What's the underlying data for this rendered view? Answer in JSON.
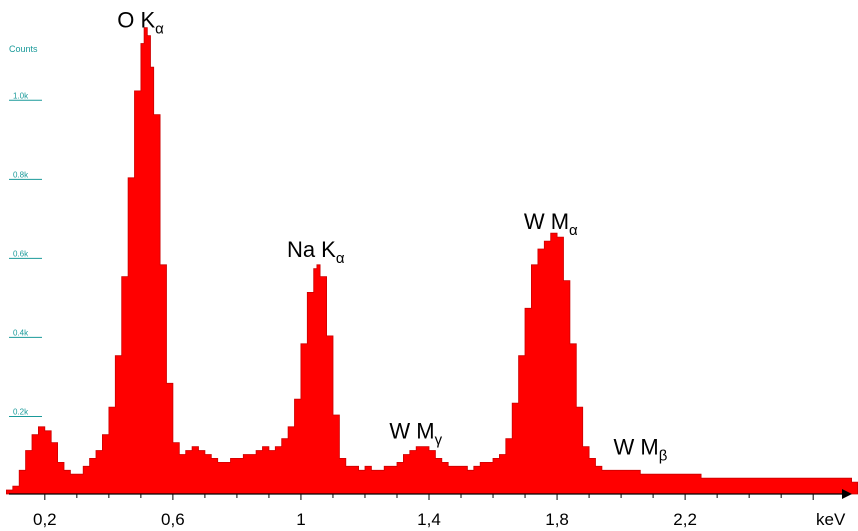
{
  "chart_data": {
    "type": "area",
    "ylabel": "Counts",
    "xlabel": "keV",
    "xlim": [
      0.06,
      2.74
    ],
    "ylim": [
      0,
      1.25
    ],
    "x_ticks": [
      {
        "value": 0.2,
        "label": "0,2"
      },
      {
        "value": 0.6,
        "label": "0,6"
      },
      {
        "value": 1.0,
        "label": "1"
      },
      {
        "value": 1.4,
        "label": "1,4"
      },
      {
        "value": 1.8,
        "label": "1,8"
      },
      {
        "value": 2.2,
        "label": "2,2"
      }
    ],
    "y_ticks": [
      {
        "value": 0.2,
        "label": "0.2k"
      },
      {
        "value": 0.4,
        "label": "0.4k"
      },
      {
        "value": 0.6,
        "label": "0.6k"
      },
      {
        "value": 0.8,
        "label": "0.8k"
      },
      {
        "value": 1.0,
        "label": "1.0k"
      }
    ],
    "peaks": [
      {
        "element": "O",
        "line": "K",
        "sub": "α",
        "x": 0.52,
        "y": 1.16
      },
      {
        "element": "Na",
        "line": "K",
        "sub": "α",
        "x": 1.05,
        "y": 0.58
      },
      {
        "element": "W",
        "line": "M",
        "sub": "γ",
        "x": 1.37,
        "y": 0.12
      },
      {
        "element": "W",
        "line": "M",
        "sub": "α",
        "x": 1.79,
        "y": 0.65
      },
      {
        "element": "W",
        "line": "M",
        "sub": "β",
        "x": 2.07,
        "y": 0.08
      }
    ],
    "series": [
      {
        "color": "#ff0000",
        "x": [
          0.08,
          0.1,
          0.12,
          0.14,
          0.16,
          0.18,
          0.2,
          0.22,
          0.24,
          0.26,
          0.28,
          0.3,
          0.32,
          0.34,
          0.36,
          0.38,
          0.4,
          0.42,
          0.44,
          0.46,
          0.48,
          0.5,
          0.51,
          0.52,
          0.53,
          0.54,
          0.56,
          0.58,
          0.6,
          0.62,
          0.64,
          0.66,
          0.68,
          0.7,
          0.72,
          0.74,
          0.76,
          0.78,
          0.8,
          0.82,
          0.84,
          0.86,
          0.88,
          0.9,
          0.92,
          0.94,
          0.96,
          0.98,
          1.0,
          1.02,
          1.04,
          1.05,
          1.06,
          1.08,
          1.1,
          1.12,
          1.14,
          1.16,
          1.18,
          1.2,
          1.22,
          1.24,
          1.26,
          1.28,
          1.3,
          1.32,
          1.34,
          1.36,
          1.38,
          1.4,
          1.42,
          1.44,
          1.46,
          1.48,
          1.5,
          1.52,
          1.54,
          1.56,
          1.58,
          1.6,
          1.62,
          1.64,
          1.66,
          1.68,
          1.7,
          1.72,
          1.74,
          1.76,
          1.78,
          1.8,
          1.82,
          1.84,
          1.86,
          1.88,
          1.9,
          1.92,
          1.94,
          1.96,
          1.98,
          2.0,
          2.02,
          2.04,
          2.06,
          2.08,
          2.1,
          2.15,
          2.2,
          2.25,
          2.3,
          2.35,
          2.4,
          2.45,
          2.5,
          2.55,
          2.6,
          2.65,
          2.7,
          2.72
        ],
        "y": [
          0.01,
          0.02,
          0.06,
          0.11,
          0.15,
          0.17,
          0.16,
          0.13,
          0.08,
          0.06,
          0.05,
          0.05,
          0.07,
          0.09,
          0.11,
          0.15,
          0.22,
          0.35,
          0.55,
          0.8,
          1.02,
          1.14,
          1.18,
          1.16,
          1.08,
          0.96,
          0.58,
          0.28,
          0.13,
          0.1,
          0.11,
          0.12,
          0.11,
          0.1,
          0.09,
          0.08,
          0.08,
          0.09,
          0.09,
          0.1,
          0.1,
          0.11,
          0.12,
          0.11,
          0.12,
          0.14,
          0.17,
          0.24,
          0.38,
          0.51,
          0.57,
          0.58,
          0.55,
          0.4,
          0.2,
          0.09,
          0.07,
          0.07,
          0.06,
          0.07,
          0.06,
          0.06,
          0.07,
          0.07,
          0.08,
          0.1,
          0.11,
          0.12,
          0.12,
          0.11,
          0.09,
          0.08,
          0.07,
          0.07,
          0.07,
          0.06,
          0.07,
          0.08,
          0.08,
          0.09,
          0.1,
          0.14,
          0.23,
          0.35,
          0.47,
          0.58,
          0.62,
          0.64,
          0.66,
          0.65,
          0.54,
          0.38,
          0.22,
          0.12,
          0.09,
          0.07,
          0.06,
          0.06,
          0.06,
          0.06,
          0.06,
          0.06,
          0.05,
          0.05,
          0.05,
          0.05,
          0.05,
          0.04,
          0.04,
          0.04,
          0.04,
          0.04,
          0.04,
          0.04,
          0.04,
          0.04,
          0.04,
          0.03
        ]
      }
    ]
  }
}
